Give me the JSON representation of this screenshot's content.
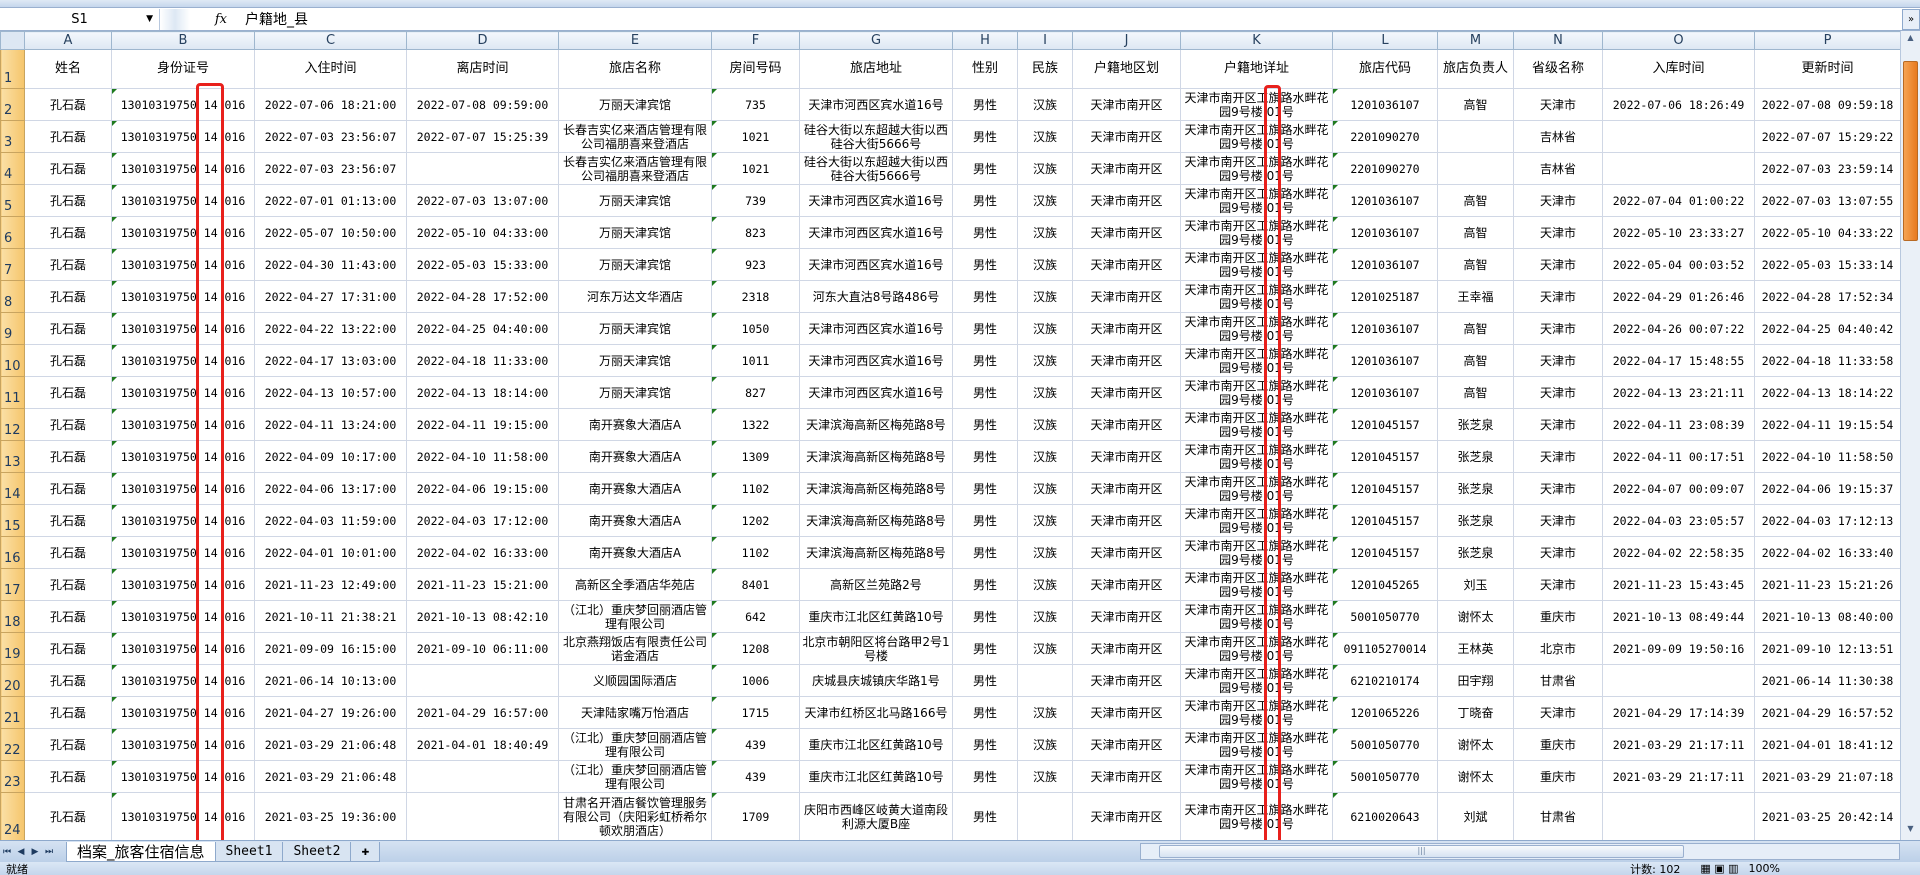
{
  "formula_bar": {
    "name_box": "S1",
    "fx_label": "fx",
    "value": "户籍地_县"
  },
  "columns": [
    "A",
    "B",
    "C",
    "D",
    "E",
    "F",
    "G",
    "H",
    "I",
    "J",
    "K",
    "L",
    "M",
    "N",
    "O",
    "P"
  ],
  "headers": [
    "姓名",
    "身份证号",
    "入住时间",
    "离店时间",
    "旅店名称",
    "房间号码",
    "旅店地址",
    "性别",
    "民族",
    "户籍地区划",
    "户籍地详址",
    "旅店代码",
    "旅店负责人",
    "省级名称",
    "入库时间",
    "更新时间"
  ],
  "rows": [
    [
      "孔石磊",
      "13010319750 14 016",
      "2022-07-06 18:21:00",
      "2022-07-08 09:59:00",
      "万丽天津宾馆",
      "735",
      "天津市河西区宾水道16号",
      "男性",
      "汉族",
      "天津市南开区",
      "天津市南开区工旗路水畔花园9号楼 01号",
      "1201036107",
      "高智",
      "天津市",
      "2022-07-06 18:26:49",
      "2022-07-08 09:59:18"
    ],
    [
      "孔石磊",
      "13010319750 14 016",
      "2022-07-03 23:56:07",
      "2022-07-07 15:25:39",
      "长春吉实亿来酒店管理有限公司福朋喜来登酒店",
      "1021",
      "硅谷大街以东超越大街以西硅谷大街5666号",
      "男性",
      "汉族",
      "天津市南开区",
      "天津市南开区工旗路水畔花园9号楼 01号",
      "2201090270",
      "",
      "吉林省",
      "",
      "2022-07-07 15:29:22"
    ],
    [
      "孔石磊",
      "13010319750 14 016",
      "2022-07-03 23:56:07",
      "",
      "长春吉实亿来酒店管理有限公司福朋喜来登酒店",
      "1021",
      "硅谷大街以东超越大街以西硅谷大街5666号",
      "男性",
      "汉族",
      "天津市南开区",
      "天津市南开区工旗路水畔花园9号楼 01号",
      "2201090270",
      "",
      "吉林省",
      "",
      "2022-07-03 23:59:14"
    ],
    [
      "孔石磊",
      "13010319750 14 016",
      "2022-07-01 01:13:00",
      "2022-07-03 13:07:00",
      "万丽天津宾馆",
      "739",
      "天津市河西区宾水道16号",
      "男性",
      "汉族",
      "天津市南开区",
      "天津市南开区工旗路水畔花园9号楼 01号",
      "1201036107",
      "高智",
      "天津市",
      "2022-07-04 01:00:22",
      "2022-07-03 13:07:55"
    ],
    [
      "孔石磊",
      "13010319750 14 016",
      "2022-05-07 10:50:00",
      "2022-05-10 04:33:00",
      "万丽天津宾馆",
      "823",
      "天津市河西区宾水道16号",
      "男性",
      "汉族",
      "天津市南开区",
      "天津市南开区工旗路水畔花园9号楼 01号",
      "1201036107",
      "高智",
      "天津市",
      "2022-05-10 23:33:27",
      "2022-05-10 04:33:22"
    ],
    [
      "孔石磊",
      "13010319750 14 016",
      "2022-04-30 11:43:00",
      "2022-05-03 15:33:00",
      "万丽天津宾馆",
      "923",
      "天津市河西区宾水道16号",
      "男性",
      "汉族",
      "天津市南开区",
      "天津市南开区工旗路水畔花园9号楼 01号",
      "1201036107",
      "高智",
      "天津市",
      "2022-05-04 00:03:52",
      "2022-05-03 15:33:14"
    ],
    [
      "孔石磊",
      "13010319750 14 016",
      "2022-04-27 17:31:00",
      "2022-04-28 17:52:00",
      "河东万达文华酒店",
      "2318",
      "河东大直沽8号路486号",
      "男性",
      "汉族",
      "天津市南开区",
      "天津市南开区工旗路水畔花园9号楼 01号",
      "1201025187",
      "王幸福",
      "天津市",
      "2022-04-29 01:26:46",
      "2022-04-28 17:52:34"
    ],
    [
      "孔石磊",
      "13010319750 14 016",
      "2022-04-22 13:22:00",
      "2022-04-25 04:40:00",
      "万丽天津宾馆",
      "1050",
      "天津市河西区宾水道16号",
      "男性",
      "汉族",
      "天津市南开区",
      "天津市南开区工旗路水畔花园9号楼 01号",
      "1201036107",
      "高智",
      "天津市",
      "2022-04-26 00:07:22",
      "2022-04-25 04:40:42"
    ],
    [
      "孔石磊",
      "13010319750 14 016",
      "2022-04-17 13:03:00",
      "2022-04-18 11:33:00",
      "万丽天津宾馆",
      "1011",
      "天津市河西区宾水道16号",
      "男性",
      "汉族",
      "天津市南开区",
      "天津市南开区工旗路水畔花园9号楼 01号",
      "1201036107",
      "高智",
      "天津市",
      "2022-04-17 15:48:55",
      "2022-04-18 11:33:58"
    ],
    [
      "孔石磊",
      "13010319750 14 016",
      "2022-04-13 10:57:00",
      "2022-04-13 18:14:00",
      "万丽天津宾馆",
      "827",
      "天津市河西区宾水道16号",
      "男性",
      "汉族",
      "天津市南开区",
      "天津市南开区工旗路水畔花园9号楼 01号",
      "1201036107",
      "高智",
      "天津市",
      "2022-04-13 23:21:11",
      "2022-04-13 18:14:22"
    ],
    [
      "孔石磊",
      "13010319750 14 016",
      "2022-04-11 13:24:00",
      "2022-04-11 19:15:00",
      "南开赛象大酒店A",
      "1322",
      "天津滨海高新区梅苑路8号",
      "男性",
      "汉族",
      "天津市南开区",
      "天津市南开区工旗路水畔花园9号楼 01号",
      "1201045157",
      "张芝泉",
      "天津市",
      "2022-04-11 23:08:39",
      "2022-04-11 19:15:54"
    ],
    [
      "孔石磊",
      "13010319750 14 016",
      "2022-04-09 10:17:00",
      "2022-04-10 11:58:00",
      "南开赛象大酒店A",
      "1309",
      "天津滨海高新区梅苑路8号",
      "男性",
      "汉族",
      "天津市南开区",
      "天津市南开区工旗路水畔花园9号楼 01号",
      "1201045157",
      "张芝泉",
      "天津市",
      "2022-04-11 00:17:51",
      "2022-04-10 11:58:50"
    ],
    [
      "孔石磊",
      "13010319750 14 016",
      "2022-04-06 13:17:00",
      "2022-04-06 19:15:00",
      "南开赛象大酒店A",
      "1102",
      "天津滨海高新区梅苑路8号",
      "男性",
      "汉族",
      "天津市南开区",
      "天津市南开区工旗路水畔花园9号楼 01号",
      "1201045157",
      "张芝泉",
      "天津市",
      "2022-04-07 00:09:07",
      "2022-04-06 19:15:37"
    ],
    [
      "孔石磊",
      "13010319750 14 016",
      "2022-04-03 11:59:00",
      "2022-04-03 17:12:00",
      "南开赛象大酒店A",
      "1202",
      "天津滨海高新区梅苑路8号",
      "男性",
      "汉族",
      "天津市南开区",
      "天津市南开区工旗路水畔花园9号楼 01号",
      "1201045157",
      "张芝泉",
      "天津市",
      "2022-04-03 23:05:57",
      "2022-04-03 17:12:13"
    ],
    [
      "孔石磊",
      "13010319750 14 016",
      "2022-04-01 10:01:00",
      "2022-04-02 16:33:00",
      "南开赛象大酒店A",
      "1102",
      "天津滨海高新区梅苑路8号",
      "男性",
      "汉族",
      "天津市南开区",
      "天津市南开区工旗路水畔花园9号楼 01号",
      "1201045157",
      "张芝泉",
      "天津市",
      "2022-04-02 22:58:35",
      "2022-04-02 16:33:40"
    ],
    [
      "孔石磊",
      "13010319750 14 016",
      "2021-11-23 12:49:00",
      "2021-11-23 15:21:00",
      "高新区全季酒店华苑店",
      "8401",
      "高新区兰苑路2号",
      "男性",
      "汉族",
      "天津市南开区",
      "天津市南开区工旗路水畔花园9号楼 01号",
      "1201045265",
      "刘玉",
      "天津市",
      "2021-11-23 15:43:45",
      "2021-11-23 15:21:26"
    ],
    [
      "孔石磊",
      "13010319750 14 016",
      "2021-10-11 21:38:21",
      "2021-10-13 08:42:10",
      "（江北）重庆梦回丽酒店管理有限公司",
      "642",
      "重庆市江北区红黄路10号",
      "男性",
      "汉族",
      "天津市南开区",
      "天津市南开区工旗路水畔花园9号楼 01号",
      "5001050770",
      "谢怀太",
      "重庆市",
      "2021-10-13 08:49:44",
      "2021-10-13 08:40:00"
    ],
    [
      "孔石磊",
      "13010319750 14 016",
      "2021-09-09 16:15:00",
      "2021-09-10 06:11:00",
      "北京燕翔饭店有限责任公司诺金酒店",
      "1208",
      "北京市朝阳区将台路甲2号1号楼",
      "男性",
      "汉族",
      "天津市南开区",
      "天津市南开区工旗路水畔花园9号楼 01号",
      "091105270014",
      "王林英",
      "北京市",
      "2021-09-09 19:50:16",
      "2021-09-10 12:13:51"
    ],
    [
      "孔石磊",
      "13010319750 14 016",
      "2021-06-14 10:13:00",
      "",
      "义顺园国际酒店",
      "1006",
      "庆城县庆城镇庆华路1号",
      "男性",
      "",
      "天津市南开区",
      "天津市南开区工旗路水畔花园9号楼 01号",
      "6210210174",
      "田宇翔",
      "甘肃省",
      "",
      "2021-06-14 11:30:38"
    ],
    [
      "孔石磊",
      "13010319750 14 016",
      "2021-04-27 19:26:00",
      "2021-04-29 16:57:00",
      "天津陆家嘴万怡酒店",
      "1715",
      "天津市红桥区北马路166号",
      "男性",
      "汉族",
      "天津市南开区",
      "天津市南开区工旗路水畔花园9号楼 01号",
      "1201065226",
      "丁晓奋",
      "天津市",
      "2021-04-29 17:14:39",
      "2021-04-29 16:57:52"
    ],
    [
      "孔石磊",
      "13010319750 14 016",
      "2021-03-29 21:06:48",
      "2021-04-01 18:40:49",
      "（江北）重庆梦回丽酒店管理有限公司",
      "439",
      "重庆市江北区红黄路10号",
      "男性",
      "汉族",
      "天津市南开区",
      "天津市南开区工旗路水畔花园9号楼 01号",
      "5001050770",
      "谢怀太",
      "重庆市",
      "2021-03-29 21:17:11",
      "2021-04-01 18:41:12"
    ],
    [
      "孔石磊",
      "13010319750 14 016",
      "2021-03-29 21:06:48",
      "",
      "（江北）重庆梦回丽酒店管理有限公司",
      "439",
      "重庆市江北区红黄路10号",
      "男性",
      "汉族",
      "天津市南开区",
      "天津市南开区工旗路水畔花园9号楼 01号",
      "5001050770",
      "谢怀太",
      "重庆市",
      "2021-03-29 21:17:11",
      "2021-03-29 21:07:18"
    ],
    [
      "孔石磊",
      "13010319750 14 016",
      "2021-03-25 19:36:00",
      "",
      "甘肃名开酒店餐饮管理服务有限公司（庆阳彩虹桥希尔顿欢朋酒店）",
      "1709",
      "庆阳市西峰区岐黄大道南段利源大厦B座",
      "男性",
      "",
      "天津市南开区",
      "天津市南开区工旗路水畔花园9号楼 01号",
      "6210020643",
      "刘斌",
      "甘肃省",
      "",
      "2021-03-25 20:42:14"
    ]
  ],
  "sheet_tabs": [
    "档案_旅客住宿信息",
    "Sheet1",
    "Sheet2"
  ],
  "status": {
    "ready": "就绪",
    "count": "计数: 102",
    "zoom": "100%"
  },
  "colors": {
    "highlight": "#e8201c",
    "row_header": "#f5c56b",
    "grid": "#d0d7e5"
  }
}
